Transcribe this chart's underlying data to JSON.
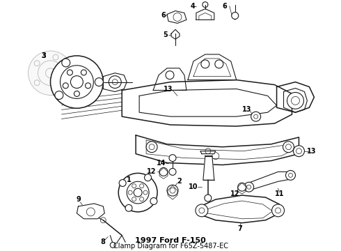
{
  "title": "1997 Ford F-150",
  "subtitle": "Clamp Diagram for F65Z-5487-EC",
  "bg_color": "#ffffff",
  "line_color": "#1a1a1a",
  "label_color": "#000000",
  "fig_width": 4.9,
  "fig_height": 3.6,
  "dpi": 100
}
